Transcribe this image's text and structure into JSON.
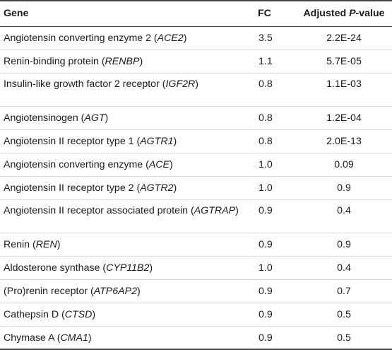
{
  "header": {
    "gene": "Gene",
    "fc": "FC",
    "p_prefix": "Adjusted ",
    "p_italic": "P",
    "p_suffix": "-value"
  },
  "rows": [
    {
      "name": "Angiotensin converting enzyme 2 (",
      "symbol": "ACE2",
      "close": ")",
      "fc": "3.5",
      "p": "2.2E-24"
    },
    {
      "name": "Renin-binding protein (",
      "symbol": "RENBP",
      "close": ")",
      "fc": "1.1",
      "p": "5.7E-05"
    },
    {
      "name": "Insulin-like growth factor 2 receptor (",
      "symbol": "IGF2R",
      "close": ")",
      "fc": "0.8",
      "p": "1.1E-03"
    },
    {
      "name": "Angiotensinogen (",
      "symbol": "AGT",
      "close": ")",
      "fc": "0.8",
      "p": "1.2E-04"
    },
    {
      "name": "Angiotensin II receptor type 1 (",
      "symbol": "AGTR1",
      "close": ")",
      "fc": "0.8",
      "p": "2.0E-13"
    },
    {
      "name": "Angiotensin converting enzyme (",
      "symbol": "ACE",
      "close": ")",
      "fc": "1.0",
      "p": "0.09"
    },
    {
      "name": "Angiotensin II receptor type 2 (",
      "symbol": "AGTR2",
      "close": ")",
      "fc": "1.0",
      "p": "0.9"
    },
    {
      "name": "Angiotensin II receptor associated protein (",
      "symbol": "AGTRAP",
      "close": ")",
      "fc": "0.9",
      "p": "0.4"
    },
    {
      "name": "Renin (",
      "symbol": "REN",
      "close": ")",
      "fc": "0.9",
      "p": "0.9"
    },
    {
      "name": "Aldosterone synthase (",
      "symbol": "CYP11B2",
      "close": ")",
      "fc": "1.0",
      "p": "0.4"
    },
    {
      "name": "(Pro)renin receptor (",
      "symbol": "ATP6AP2",
      "close": ")",
      "fc": "0.9",
      "p": "0.7"
    },
    {
      "name": "Cathepsin D (",
      "symbol": "CTSD",
      "close": ")",
      "fc": "0.9",
      "p": "0.5"
    },
    {
      "name": "Chymase A (",
      "symbol": "CMA1",
      "close": ")",
      "fc": "0.9",
      "p": "0.5"
    }
  ]
}
